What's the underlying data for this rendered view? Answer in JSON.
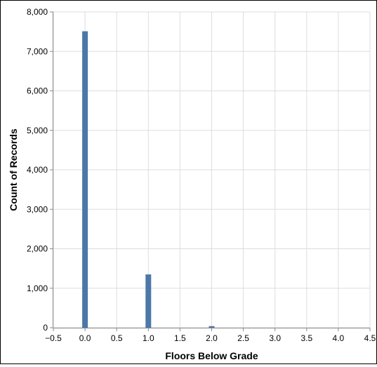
{
  "chart_data": {
    "type": "bar",
    "title": "",
    "xlabel": "Floors Below Grade",
    "ylabel": "Count of Records",
    "xlim": [
      -0.5,
      4.5
    ],
    "ylim": [
      0,
      8000
    ],
    "x_ticks": [
      "−0.5",
      "0.0",
      "0.5",
      "1.0",
      "1.5",
      "2.0",
      "2.5",
      "3.0",
      "3.5",
      "4.0",
      "4.5"
    ],
    "y_ticks": [
      "0",
      "1,000",
      "2,000",
      "3,000",
      "4,000",
      "5,000",
      "6,000",
      "7,000",
      "8,000"
    ],
    "grid": true,
    "x": [
      0,
      1,
      2
    ],
    "values": [
      7510,
      1350,
      40
    ],
    "bar_color": "#4c78a8"
  }
}
